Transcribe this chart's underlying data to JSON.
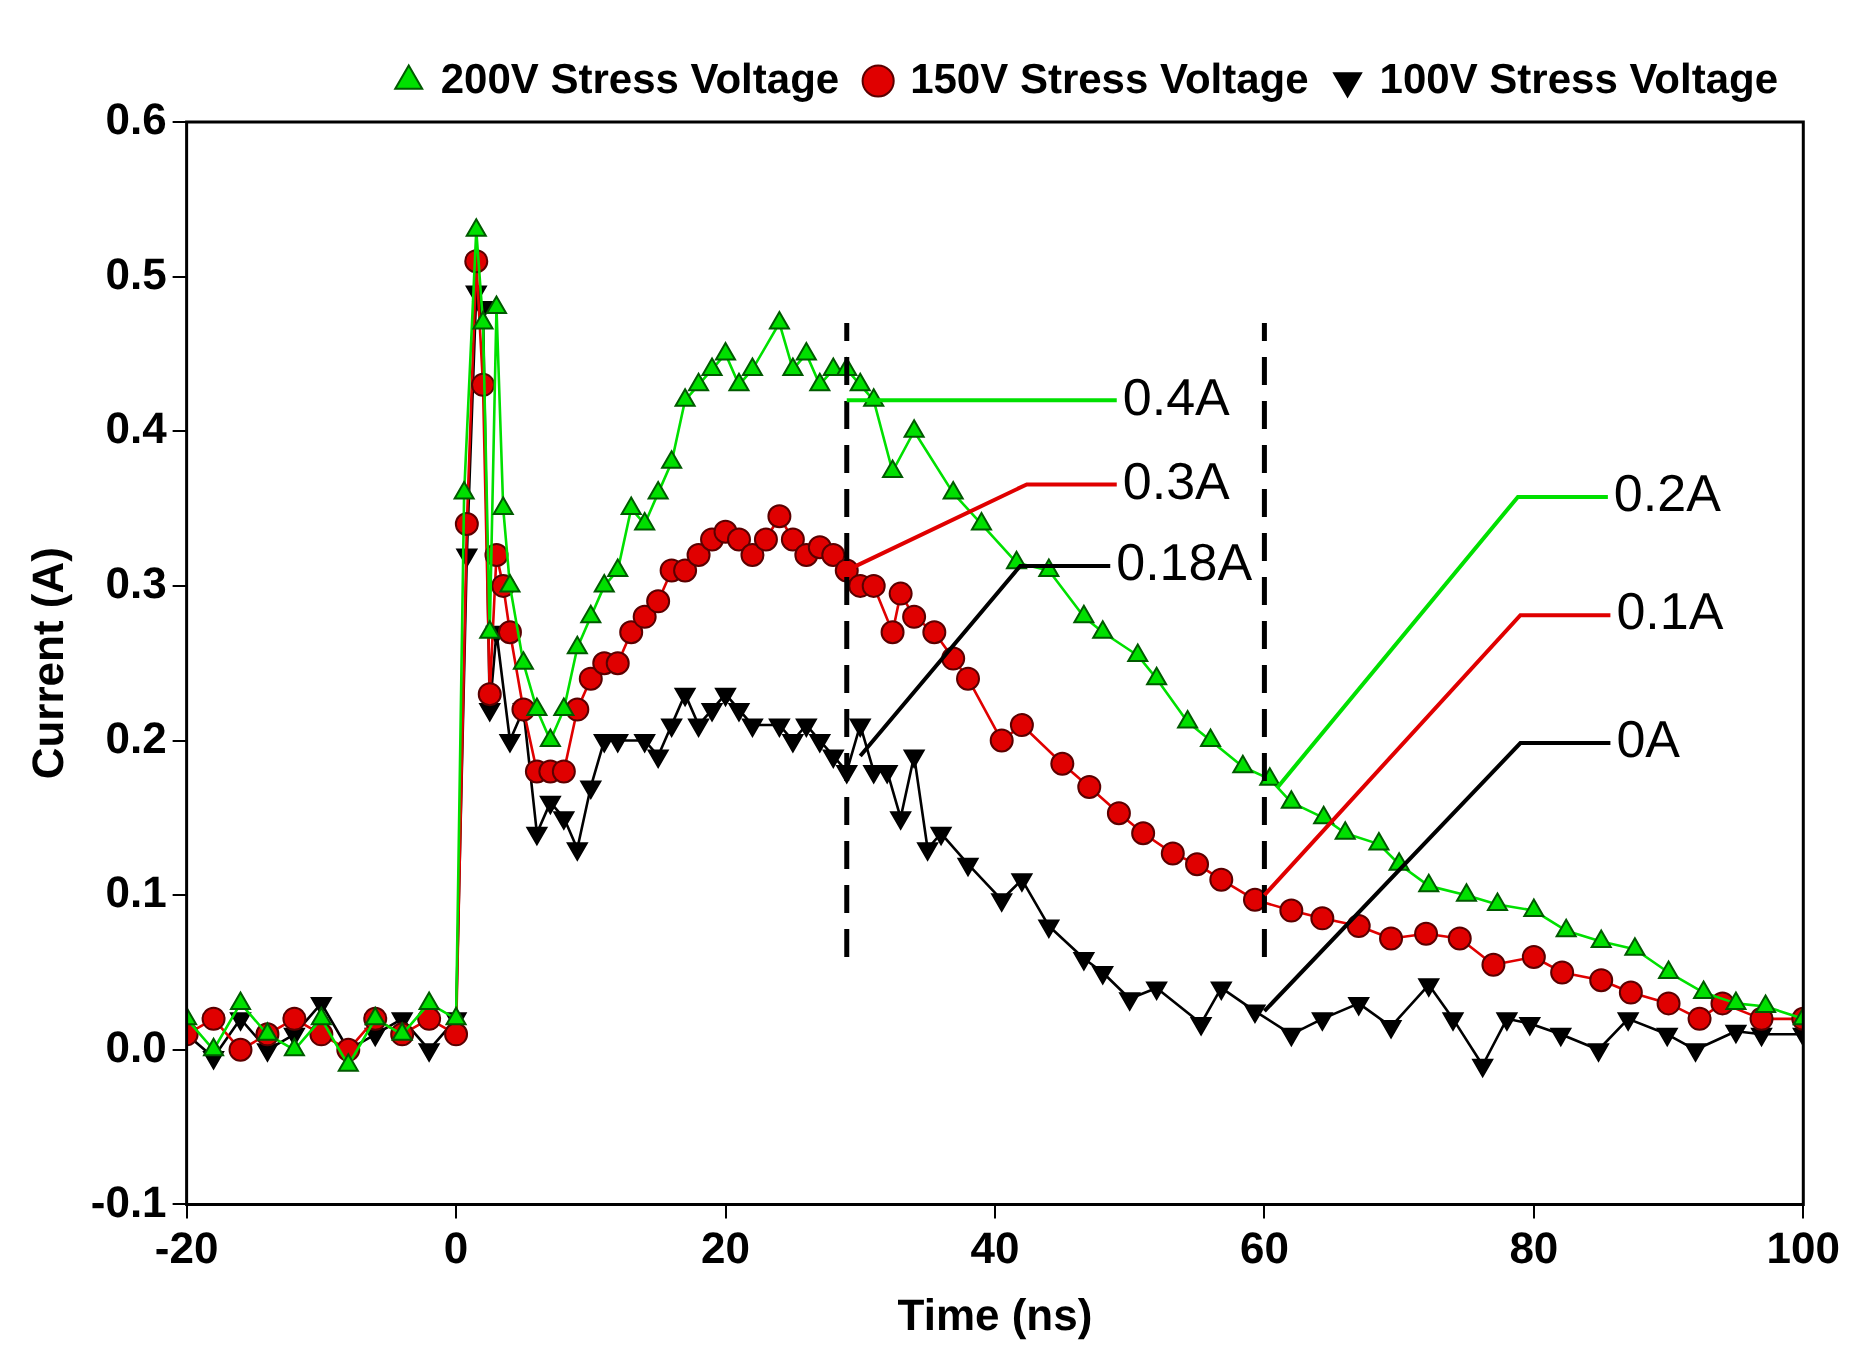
{
  "chart_data": {
    "type": "line",
    "xlabel": "Time (ns)",
    "ylabel": "Current (A)",
    "xlim": [
      -20,
      100
    ],
    "xticks": [
      -20,
      0,
      20,
      40,
      60,
      80,
      100
    ],
    "ylim": [
      -0.1,
      0.6
    ],
    "yticks": [
      -0.1,
      {
        "value": 0,
        "label": "0.0"
      },
      0.1,
      0.2,
      0.3,
      0.4,
      0.5,
      0.6
    ],
    "grid": false,
    "legend": "top right",
    "line_style": "solid",
    "series": [
      {
        "name": "100V Stress Voltage",
        "color": "#000000",
        "marker": "triangle",
        "x": [
          -20,
          -18,
          -16,
          -14,
          -12,
          -10,
          -8,
          -6,
          -4,
          -2,
          0,
          0.8,
          1.5,
          2,
          2.5,
          3,
          4,
          5,
          6,
          7,
          8,
          9,
          10,
          11,
          12,
          14,
          15,
          16,
          17,
          18,
          19,
          20,
          21,
          22,
          24,
          25,
          26,
          27,
          28,
          29,
          30,
          31,
          32,
          33,
          34,
          35,
          36,
          38,
          40.5,
          42,
          44,
          46.6,
          48,
          50,
          52,
          55.3,
          56.8,
          59.3,
          62,
          64.3,
          67,
          69.4,
          72.2,
          74,
          76.2,
          78,
          79.7,
          82,
          84.8,
          87,
          89.9,
          92,
          95,
          96.9,
          100
        ],
        "values": [
          0.01,
          -0.005,
          0.02,
          0.0,
          0.01,
          0.03,
          0.0,
          0.01,
          0.02,
          0.0,
          0.02,
          0.32,
          0.49,
          0.48,
          0.22,
          0.27,
          0.2,
          0.22,
          0.14,
          0.16,
          0.15,
          0.13,
          0.17,
          0.2,
          0.2,
          0.2,
          0.19,
          0.21,
          0.23,
          0.21,
          0.22,
          0.23,
          0.22,
          0.21,
          0.21,
          0.2,
          0.21,
          0.2,
          0.19,
          0.18,
          0.21,
          0.18,
          0.18,
          0.15,
          0.19,
          0.13,
          0.14,
          0.12,
          0.097,
          0.11,
          0.08,
          0.059,
          0.05,
          0.033,
          0.04,
          0.017,
          0.04,
          0.025,
          0.01,
          0.02,
          0.03,
          0.015,
          0.042,
          0.02,
          -0.01,
          0.02,
          0.017,
          0.01,
          0.0,
          0.02,
          0.01,
          0.0,
          0.012,
          0.01,
          0.01
        ]
      },
      {
        "name": "150V Stress Voltage",
        "color": "#e00000",
        "marker": "circle",
        "x": [
          -20,
          -18,
          -16,
          -14,
          -12,
          -10,
          -8,
          -6,
          -4,
          -2,
          0,
          0.8,
          1.5,
          2,
          2.5,
          3,
          3.5,
          4,
          5,
          6,
          7,
          8,
          9,
          10,
          11,
          12,
          13,
          14,
          15,
          16,
          17,
          18,
          19,
          20,
          21,
          22,
          23,
          24,
          25,
          26,
          27,
          28,
          29,
          30,
          31,
          32.4,
          33,
          34,
          35.5,
          36.9,
          38,
          40.5,
          42,
          45,
          47,
          49.2,
          51,
          53.2,
          55,
          56.8,
          59.3,
          62,
          64.3,
          67,
          69.4,
          72,
          74.5,
          77,
          80,
          82.1,
          85,
          87.2,
          90,
          92.3,
          94,
          96.9,
          100
        ],
        "values": [
          0.01,
          0.02,
          0.0,
          0.01,
          0.02,
          0.01,
          0.0,
          0.02,
          0.01,
          0.02,
          0.01,
          0.34,
          0.51,
          0.43,
          0.23,
          0.32,
          0.3,
          0.27,
          0.22,
          0.18,
          0.18,
          0.18,
          0.22,
          0.24,
          0.25,
          0.25,
          0.27,
          0.28,
          0.29,
          0.31,
          0.31,
          0.32,
          0.33,
          0.335,
          0.33,
          0.32,
          0.33,
          0.345,
          0.33,
          0.32,
          0.325,
          0.32,
          0.31,
          0.3,
          0.3,
          0.27,
          0.295,
          0.28,
          0.27,
          0.253,
          0.24,
          0.2,
          0.21,
          0.185,
          0.17,
          0.153,
          0.14,
          0.127,
          0.12,
          0.11,
          0.097,
          0.09,
          0.085,
          0.08,
          0.072,
          0.075,
          0.072,
          0.055,
          0.06,
          0.05,
          0.045,
          0.037,
          0.03,
          0.02,
          0.03,
          0.02,
          0.02
        ]
      },
      {
        "name": "200V Stress Voltage",
        "color": "#00e000",
        "marker": "triangle",
        "x": [
          -20,
          -18,
          -16,
          -14,
          -12,
          -10,
          -8,
          -6,
          -4,
          -2,
          0,
          0.6,
          1.5,
          2,
          2.5,
          3,
          3.5,
          4,
          5,
          6,
          7,
          8,
          9,
          10,
          11,
          12,
          13,
          14,
          15,
          16,
          17,
          18,
          19,
          20,
          21,
          22,
          24,
          25,
          26,
          27,
          28,
          29,
          30,
          31,
          32.4,
          34,
          36.9,
          39,
          41.6,
          44,
          46.6,
          48,
          50.6,
          52,
          54.3,
          56,
          58.4,
          60.4,
          62,
          64.4,
          66,
          68.5,
          70,
          72.2,
          75,
          77.3,
          80,
          82.4,
          85,
          87.5,
          90,
          92.6,
          95,
          97.2,
          100
        ],
        "values": [
          0.02,
          0.0,
          0.03,
          0.01,
          0.0,
          0.02,
          -0.01,
          0.02,
          0.01,
          0.03,
          0.02,
          0.36,
          0.53,
          0.47,
          0.27,
          0.48,
          0.35,
          0.3,
          0.25,
          0.22,
          0.2,
          0.22,
          0.26,
          0.28,
          0.3,
          0.31,
          0.35,
          0.34,
          0.36,
          0.38,
          0.42,
          0.43,
          0.44,
          0.45,
          0.43,
          0.44,
          0.47,
          0.44,
          0.45,
          0.43,
          0.44,
          0.44,
          0.43,
          0.42,
          0.374,
          0.4,
          0.36,
          0.34,
          0.315,
          0.31,
          0.28,
          0.27,
          0.255,
          0.24,
          0.212,
          0.2,
          0.183,
          0.175,
          0.16,
          0.15,
          0.14,
          0.133,
          0.12,
          0.106,
          0.1,
          0.094,
          0.09,
          0.077,
          0.07,
          0.065,
          0.05,
          0.037,
          0.03,
          0.028,
          0.02
        ]
      }
    ],
    "ref_lines": [
      {
        "axis": "x",
        "value": 29,
        "line_style": "dashed",
        "color": "#000000"
      },
      {
        "axis": "x",
        "value": 60,
        "line_style": "dashed",
        "color": "#000000"
      }
    ],
    "annotations": [
      {
        "text": "0.4A",
        "x": 29,
        "y": 0.42
      },
      {
        "text": "0.3A",
        "x": 29,
        "y": 0.31
      },
      {
        "text": "0.18A",
        "x": 30,
        "y": 0.19
      },
      {
        "text": "0.2A",
        "x": 61,
        "y": 0.17
      },
      {
        "text": "0.1A",
        "x": 60,
        "y": 0.1
      },
      {
        "text": "0A",
        "x": 60,
        "y": 0.025
      }
    ]
  }
}
